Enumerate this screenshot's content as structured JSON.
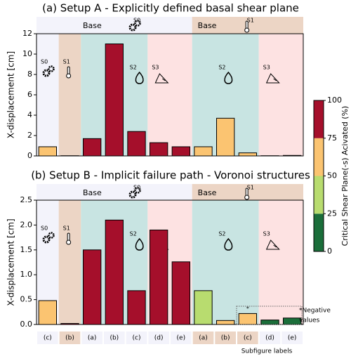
{
  "chart_data": [
    {
      "type": "bar",
      "title": "(a) Setup A - Explicitly defined  basal shear plane",
      "y_label": "X-displacement [cm]",
      "headers": [
        {
          "label": "Base",
          "tag": "S0"
        },
        {
          "label": "Base",
          "tag": "S1"
        }
      ],
      "region_labels": [
        "S0",
        "S1",
        "S2",
        "S3",
        "S2",
        "S3"
      ],
      "values": [
        0.9,
        0.02,
        1.7,
        11.0,
        2.4,
        1.3,
        0.9,
        0.9,
        3.7,
        0.3,
        0.02,
        0.05
      ],
      "colors": [
        "#fbc471",
        "#a50f2b",
        "#a50f2b",
        "#a50f2b",
        "#a50f2b",
        "#a50f2b",
        "#a50f2b",
        "#fbc471",
        "#fbc471",
        "#fbc471",
        "#a50f2b",
        "#a50f2b"
      ],
      "ylim": [
        0,
        12
      ],
      "yticks": [
        0,
        2,
        4,
        6,
        8,
        10,
        12
      ]
    },
    {
      "type": "bar",
      "title": "(b) Setup B - Implicit failure path - Voronoi structures",
      "y_label": "X-displacement [cm]",
      "headers": [
        {
          "label": "Base",
          "tag": "S0"
        },
        {
          "label": "Base",
          "tag": "S1"
        }
      ],
      "region_labels": [
        "S0",
        "S1",
        "S2",
        "S3",
        "S2",
        "S3"
      ],
      "values": [
        0.48,
        0.02,
        1.5,
        2.1,
        0.68,
        1.9,
        1.26,
        0.68,
        0.08,
        0.22,
        0.09,
        0.13
      ],
      "colors": [
        "#fbc471",
        "#a50f2b",
        "#a50f2b",
        "#a50f2b",
        "#a50f2b",
        "#a50f2b",
        "#a50f2b",
        "#b8dc6f",
        "#fbc471",
        "#fbc471",
        "#1b6e3a",
        "#1b6e3a"
      ],
      "ylim": [
        0,
        2.5
      ],
      "yticks": [
        {
          "value": 0,
          "label": "0.0"
        },
        0.5,
        {
          "value": 1,
          "label": "1.0"
        },
        1.5,
        {
          "value": 2,
          "label": "2.0"
        },
        2.5
      ],
      "star": "*",
      "annotation_lines": [
        "*Negative",
        "values"
      ]
    }
  ],
  "colorbar": {
    "label": "Critical Shear Plane(-s) Acivated (%)",
    "lim": [
      0,
      100
    ],
    "ticks": [
      0,
      25,
      50,
      75,
      100
    ],
    "colors": [
      "#1b6e3a",
      "#b8dc6f",
      "#fbc471",
      "#a50f2b"
    ]
  },
  "subfigure_labels": {
    "title": "Subfigure labels",
    "labels": [
      "(c)",
      "(b)",
      "(a)",
      "(b)",
      "(c)",
      "(d)",
      "(e)",
      "(a)",
      "(b)",
      "(c)",
      "(d)",
      "(e)"
    ]
  }
}
